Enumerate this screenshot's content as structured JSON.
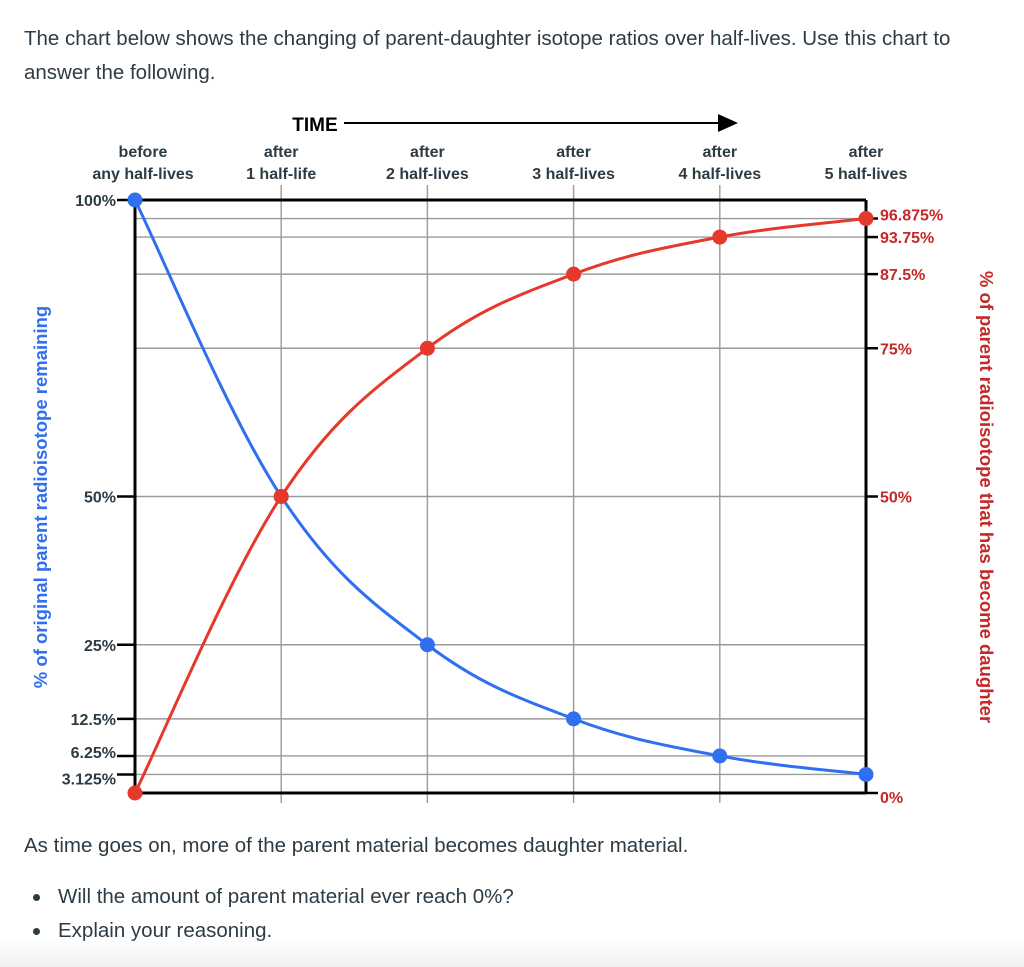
{
  "intro": "The chart below shows the changing of parent-daughter isotope ratios over half-lives.  Use this chart to answer the following.",
  "after_text": "As time goes on, more of the parent material becomes daughter material.",
  "questions": [
    "Will the amount of parent material ever reach 0%?",
    "Explain your reasoning."
  ],
  "chart_data": {
    "type": "line",
    "title": "TIME",
    "categories": [
      [
        "before",
        "any half-lives"
      ],
      [
        "after",
        "1 half-life"
      ],
      [
        "after",
        "2 half-lives"
      ],
      [
        "after",
        "3 half-lives"
      ],
      [
        "after",
        "4 half-lives"
      ],
      [
        "after",
        "5 half-lives"
      ]
    ],
    "ylabel": "% of original parent radioisotope remaining",
    "ylabel_right": "% of parent radioisotope that has become daughter",
    "ylim": [
      0,
      100
    ],
    "left_ticks": [
      {
        "value": 100,
        "label": "100%"
      },
      {
        "value": 50,
        "label": "50%"
      },
      {
        "value": 25,
        "label": "25%"
      },
      {
        "value": 12.5,
        "label": "12.5%"
      },
      {
        "value": 6.25,
        "label": "6.25%"
      },
      {
        "value": 3.125,
        "label": "3.125%"
      }
    ],
    "right_ticks": [
      {
        "value": 96.875,
        "label": "96.875%"
      },
      {
        "value": 93.75,
        "label": "93.75%"
      },
      {
        "value": 87.5,
        "label": "87.5%"
      },
      {
        "value": 75,
        "label": "75%"
      },
      {
        "value": 50,
        "label": "50%"
      },
      {
        "value": 0,
        "label": "0%"
      }
    ],
    "series": [
      {
        "name": "parent",
        "color": "#2f6ff0",
        "values": [
          100,
          50,
          25,
          12.5,
          6.25,
          3.125
        ]
      },
      {
        "name": "daughter",
        "color": "#e5392b",
        "values": [
          0,
          50,
          75,
          87.5,
          93.75,
          96.875
        ]
      }
    ],
    "colors": {
      "axis": "#000000",
      "grid": "#9a9a9a",
      "text": "#2d3b45",
      "right_text": "#c62828"
    }
  }
}
